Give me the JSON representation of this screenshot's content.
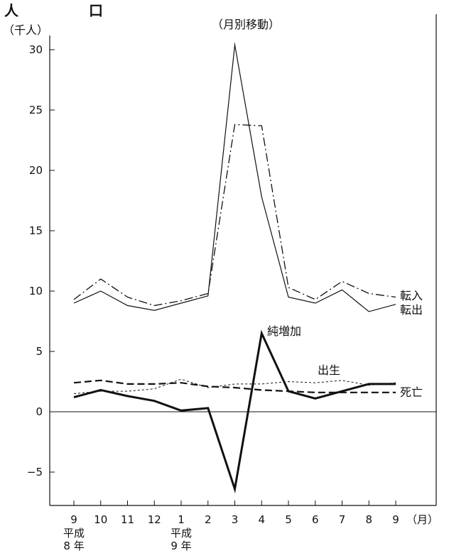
{
  "chart_data": {
    "type": "line",
    "heading_left": "人",
    "heading_right": "口",
    "title": "（月別移動）",
    "ylabel": "（千人）",
    "xunit": "（月）",
    "categories": [
      "9",
      "10",
      "11",
      "12",
      "1",
      "2",
      "3",
      "4",
      "5",
      "6",
      "7",
      "8",
      "9"
    ],
    "era_labels": [
      {
        "category_index": 0,
        "era": "平成",
        "year": "8 年"
      },
      {
        "category_index": 4,
        "era": "平成",
        "year": "9 年"
      }
    ],
    "ylim": [
      -7,
      33
    ],
    "yticks": [
      -5,
      0,
      5,
      10,
      15,
      20,
      25,
      30
    ],
    "ytick_labels": [
      "−5",
      "0",
      "5",
      "10",
      "15",
      "20",
      "25",
      "30"
    ],
    "series": [
      {
        "name": "転入",
        "style": "dash-dot",
        "values": [
          9.3,
          11.0,
          9.5,
          8.8,
          9.2,
          9.8,
          23.8,
          23.7,
          10.3,
          9.3,
          10.8,
          9.8,
          9.5
        ]
      },
      {
        "name": "転出",
        "style": "solid-thin",
        "values": [
          9.0,
          10.0,
          8.8,
          8.4,
          9.0,
          9.6,
          30.4,
          17.8,
          9.5,
          9.0,
          10.1,
          8.3,
          8.9
        ]
      },
      {
        "name": "純増加",
        "style": "solid-thick",
        "values": [
          1.2,
          1.8,
          1.3,
          0.9,
          0.1,
          0.3,
          -6.4,
          6.5,
          1.7,
          1.1,
          1.7,
          2.3,
          2.3
        ]
      },
      {
        "name": "出生",
        "style": "dotted",
        "values": [
          1.5,
          1.7,
          1.7,
          1.9,
          2.7,
          2.0,
          2.3,
          2.3,
          2.5,
          2.4,
          2.6,
          2.2,
          2.4
        ]
      },
      {
        "name": "死亡",
        "style": "dashed",
        "values": [
          2.4,
          2.6,
          2.3,
          2.3,
          2.4,
          2.1,
          2.0,
          1.8,
          1.7,
          1.6,
          1.6,
          1.6,
          1.6
        ]
      }
    ],
    "grid": false,
    "legend": "inline labels beside line ends"
  }
}
